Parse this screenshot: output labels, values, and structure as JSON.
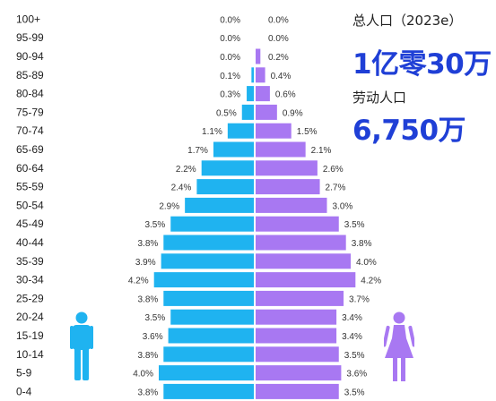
{
  "stats": {
    "total_population_label": "总人口（2023e）",
    "total_population_value": "1亿零30万",
    "labor_force_label": "劳动人口",
    "labor_force_value": "6,750万"
  },
  "colors": {
    "male": "#1fb3f0",
    "female": "#a878f2",
    "value_text": "#1f3fd6"
  },
  "icons": {
    "male": "male-person-icon",
    "female": "female-person-icon"
  },
  "chart_data": {
    "type": "bar",
    "orientation": "horizontal-population-pyramid",
    "categories": [
      "100+",
      "95-99",
      "90-94",
      "85-89",
      "80-84",
      "75-79",
      "70-74",
      "65-69",
      "60-64",
      "55-59",
      "50-54",
      "45-49",
      "40-44",
      "35-39",
      "30-34",
      "25-29",
      "20-24",
      "15-19",
      "10-14",
      "5-9",
      "0-4"
    ],
    "series": [
      {
        "side": "left",
        "color": "#1fb3f0",
        "values": [
          0.0,
          0.0,
          0.0,
          0.1,
          0.3,
          0.5,
          1.1,
          1.7,
          2.2,
          2.4,
          2.9,
          3.5,
          3.8,
          3.9,
          4.2,
          3.8,
          3.5,
          3.6,
          3.8,
          4.0,
          3.8
        ],
        "labels": [
          "0.0%",
          "0.0%",
          "0.0%",
          "0.1%",
          "0.3%",
          "0.5%",
          "1.1%",
          "1.7%",
          "2.2%",
          "2.4%",
          "2.9%",
          "3.5%",
          "3.8%",
          "3.9%",
          "4.2%",
          "3.8%",
          "3.5%",
          "3.6%",
          "3.8%",
          "4.0%",
          "3.8%"
        ]
      },
      {
        "side": "right",
        "color": "#a878f2",
        "values": [
          0.0,
          0.0,
          0.2,
          0.4,
          0.6,
          0.9,
          1.5,
          2.1,
          2.6,
          2.7,
          3.0,
          3.5,
          3.8,
          4.0,
          4.2,
          3.7,
          3.4,
          3.4,
          3.5,
          3.6,
          3.5
        ],
        "labels": [
          "0.0%",
          "0.0%",
          "0.2%",
          "0.4%",
          "0.6%",
          "0.9%",
          "1.5%",
          "2.1%",
          "2.6%",
          "2.7%",
          "3.0%",
          "3.5%",
          "3.8%",
          "4.0%",
          "4.2%",
          "3.7%",
          "3.4%",
          "3.4%",
          "3.5%",
          "3.6%",
          "3.5%"
        ]
      }
    ],
    "unit": "%",
    "title": "",
    "xlabel": "",
    "ylabel": ""
  }
}
